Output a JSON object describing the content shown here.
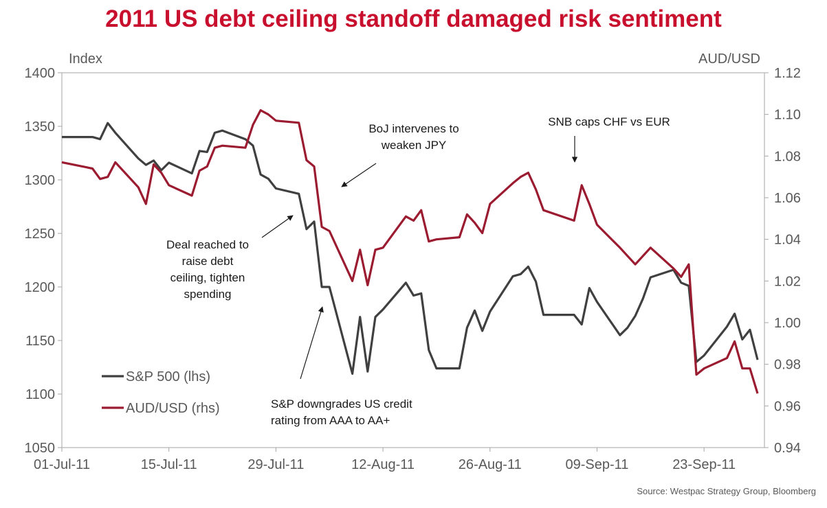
{
  "title": "2011 US debt ceiling standoff damaged risk sentiment",
  "source": "Source: Westpac Strategy Group, Bloomberg",
  "chart_data": {
    "type": "line",
    "title": "2011 US debt ceiling standoff damaged risk sentiment",
    "left_axis": {
      "label": "Index",
      "ylim": [
        1050,
        1400
      ],
      "ticks": [
        "1050",
        "1100",
        "1150",
        "1200",
        "1250",
        "1300",
        "1350",
        "1400"
      ]
    },
    "right_axis": {
      "label": "AUD/USD",
      "ylim": [
        0.94,
        1.12
      ],
      "ticks": [
        "0.94",
        "0.96",
        "0.98",
        "1.00",
        "1.02",
        "1.04",
        "1.06",
        "1.08",
        "1.10",
        "1.12"
      ]
    },
    "x_ticks": [
      "01-Jul-11",
      "15-Jul-11",
      "29-Jul-11",
      "12-Aug-11",
      "26-Aug-11",
      "09-Sep-11",
      "23-Sep-11"
    ],
    "grid": false,
    "legend_position": "bottom-left",
    "colors": {
      "sp500": "#404040",
      "audusd": "#9B1B30",
      "title": "#C8102E"
    },
    "x": [
      "2011-07-01",
      "2011-07-05",
      "2011-07-06",
      "2011-07-07",
      "2011-07-08",
      "2011-07-11",
      "2011-07-12",
      "2011-07-13",
      "2011-07-14",
      "2011-07-15",
      "2011-07-18",
      "2011-07-19",
      "2011-07-20",
      "2011-07-21",
      "2011-07-22",
      "2011-07-25",
      "2011-07-26",
      "2011-07-27",
      "2011-07-28",
      "2011-07-29",
      "2011-08-01",
      "2011-08-02",
      "2011-08-03",
      "2011-08-04",
      "2011-08-05",
      "2011-08-08",
      "2011-08-09",
      "2011-08-10",
      "2011-08-11",
      "2011-08-12",
      "2011-08-15",
      "2011-08-16",
      "2011-08-17",
      "2011-08-18",
      "2011-08-19",
      "2011-08-22",
      "2011-08-23",
      "2011-08-24",
      "2011-08-25",
      "2011-08-26",
      "2011-08-29",
      "2011-08-30",
      "2011-08-31",
      "2011-09-01",
      "2011-09-02",
      "2011-09-06",
      "2011-09-07",
      "2011-09-08",
      "2011-09-09",
      "2011-09-12",
      "2011-09-13",
      "2011-09-14",
      "2011-09-15",
      "2011-09-16",
      "2011-09-19",
      "2011-09-20",
      "2011-09-21",
      "2011-09-22",
      "2011-09-23",
      "2011-09-26",
      "2011-09-27",
      "2011-09-28",
      "2011-09-29",
      "2011-09-30"
    ],
    "series": [
      {
        "name": "S&P 500 (lhs)",
        "axis": "left",
        "values": [
          1340,
          1340,
          1338,
          1353,
          1344,
          1320,
          1314,
          1318,
          1309,
          1316,
          1306,
          1327,
          1326,
          1344,
          1346,
          1338,
          1332,
          1305,
          1301,
          1292,
          1287,
          1254,
          1261,
          1200,
          1200,
          1119,
          1172,
          1121,
          1172,
          1179,
          1204,
          1192,
          1194,
          1141,
          1124,
          1124,
          1162,
          1178,
          1159,
          1177,
          1210,
          1212,
          1219,
          1205,
          1174,
          1174,
          1165,
          1199,
          1186,
          1155,
          1162,
          1173,
          1189,
          1209,
          1216,
          1204,
          1201,
          1130,
          1136,
          1163,
          1175,
          1151,
          1160,
          1132
        ]
      },
      {
        "name": "AUD/USD (rhs)",
        "axis": "right",
        "values": [
          1.077,
          1.074,
          1.069,
          1.07,
          1.077,
          1.065,
          1.057,
          1.076,
          1.072,
          1.066,
          1.061,
          1.073,
          1.075,
          1.084,
          1.085,
          1.084,
          1.095,
          1.102,
          1.1,
          1.097,
          1.096,
          1.078,
          1.075,
          1.046,
          1.044,
          1.02,
          1.035,
          1.018,
          1.035,
          1.036,
          1.051,
          1.049,
          1.054,
          1.039,
          1.04,
          1.041,
          1.052,
          1.048,
          1.043,
          1.057,
          1.067,
          1.07,
          1.072,
          1.064,
          1.054,
          1.049,
          1.066,
          1.057,
          1.047,
          1.036,
          1.032,
          1.028,
          1.032,
          1.036,
          1.026,
          1.022,
          1.028,
          0.975,
          0.978,
          0.983,
          0.991,
          0.978,
          0.978,
          0.966
        ]
      }
    ],
    "annotations": [
      {
        "lines": [
          "BoJ intervenes to",
          "weaken JPY"
        ],
        "date": "2011-08-04",
        "value": 1.064,
        "axis": "right"
      },
      {
        "lines": [
          "SNB caps CHF vs EUR"
        ],
        "date": "2011-09-06",
        "value": 1.072,
        "axis": "right"
      },
      {
        "lines": [
          "Deal reached to",
          "raise debt",
          "ceiling, tighten",
          "spending"
        ],
        "date": "2011-08-01",
        "value": 1253,
        "axis": "left"
      },
      {
        "lines": [
          "S&P downgrades US credit",
          "rating from AAA to AA+"
        ],
        "date": "2011-08-05",
        "value": 1185,
        "axis": "left"
      }
    ]
  }
}
